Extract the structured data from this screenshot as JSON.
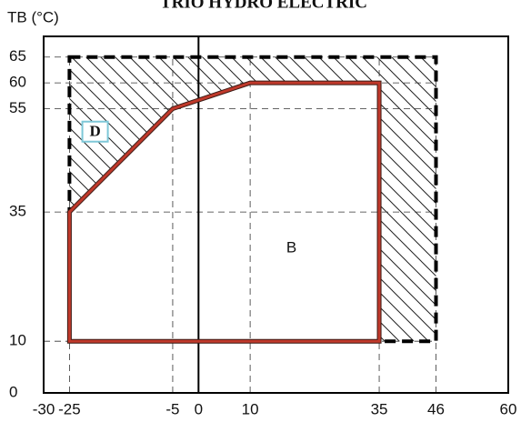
{
  "chart_data": {
    "type": "envelope",
    "title": "TRIO HYDRO ELECTRIC",
    "y_label": "TB (°C)",
    "xlim": [
      -30,
      60
    ],
    "ylim": [
      0,
      69
    ],
    "xticks": [
      -30,
      -25,
      -5,
      0,
      10,
      35,
      46,
      60
    ],
    "yticks": [
      0,
      10,
      35,
      55,
      60,
      65
    ],
    "envelope": {
      "x": [
        -25,
        46
      ],
      "y": [
        10,
        65
      ],
      "color": "#000000"
    },
    "operating_range": {
      "x": [
        -25,
        -25,
        -5,
        10,
        35,
        35
      ],
      "y": [
        10,
        35,
        55,
        60,
        60,
        10
      ],
      "color": "#c0392b"
    },
    "annotations": [
      "B",
      "D"
    ]
  }
}
